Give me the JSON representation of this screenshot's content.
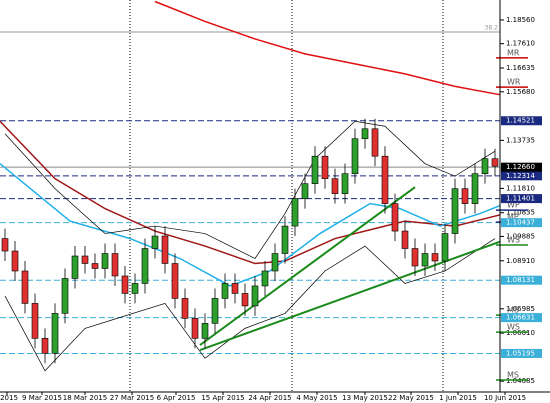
{
  "chart_data": {
    "type": "candlestick",
    "ylim": [
      1.0365,
      1.1936
    ],
    "yticks": [
      {
        "value": 1.1856,
        "label": "1.18560"
      },
      {
        "value": 1.1761,
        "label": "1.17610"
      },
      {
        "value": 1.16635,
        "label": "1.16635"
      },
      {
        "value": 1.1568,
        "label": "1.15680"
      },
      {
        "value": 1.13735,
        "label": "1.13735"
      },
      {
        "value": 1.1181,
        "label": "1.11810"
      },
      {
        "value": 1.10835,
        "label": "1.10835"
      },
      {
        "value": 1.09885,
        "label": "1.09885"
      },
      {
        "value": 1.0891,
        "label": "1.08910"
      },
      {
        "value": 1.06985,
        "label": "1.06985"
      },
      {
        "value": 1.0601,
        "label": "1.06010"
      },
      {
        "value": 1.04085,
        "label": "1.04085"
      }
    ],
    "xticks": [
      {
        "value": 0.2,
        "label": "2015"
      },
      {
        "value": 3.7,
        "label": "9 Mar 2015"
      },
      {
        "value": 8,
        "label": "18 Mar 2015"
      },
      {
        "value": 12.7,
        "label": "27 Mar 2015"
      },
      {
        "value": 17.1,
        "label": "6 Apr 2015"
      },
      {
        "value": 21.8,
        "label": "15 Apr 2015"
      },
      {
        "value": 26.5,
        "label": "24 Apr 2015"
      },
      {
        "value": 31.2,
        "label": "4 May 2015"
      },
      {
        "value": 36,
        "label": "13 May 2015"
      },
      {
        "value": 40.6,
        "label": "22 May 2015"
      },
      {
        "value": 45.3,
        "label": "1 Jun 2015"
      },
      {
        "value": 50,
        "label": "10 Jun 2015"
      }
    ],
    "separators": [
      12.5,
      28.7,
      43.8
    ],
    "up_color": "#2ca02c",
    "down_color": "#e03030",
    "open": [
      1.098,
      1.093,
      1.085,
      1.072,
      1.058,
      1.052,
      1.068,
      1.082,
      1.091,
      1.088,
      1.086,
      1.092,
      1.083,
      1.076,
      1.08,
      1.094,
      1.099,
      1.088,
      1.074,
      1.066,
      1.058,
      1.064,
      1.074,
      1.08,
      1.076,
      1.071,
      1.079,
      1.085,
      1.092,
      1.103,
      1.114,
      1.12,
      1.131,
      1.122,
      1.116,
      1.124,
      1.138,
      1.142,
      1.131,
      1.112,
      1.101,
      1.094,
      1.087,
      1.092,
      1.089,
      1.1,
      1.118,
      1.112,
      1.124,
      1.13
    ],
    "high": [
      1.102,
      1.097,
      1.089,
      1.076,
      1.062,
      1.072,
      1.086,
      1.095,
      1.095,
      1.092,
      1.096,
      1.096,
      1.087,
      1.084,
      1.098,
      1.103,
      1.103,
      1.092,
      1.078,
      1.07,
      1.068,
      1.078,
      1.084,
      1.084,
      1.08,
      1.083,
      1.089,
      1.096,
      1.107,
      1.118,
      1.124,
      1.135,
      1.135,
      1.126,
      1.128,
      1.142,
      1.146,
      1.146,
      1.135,
      1.116,
      1.105,
      1.098,
      1.096,
      1.096,
      1.104,
      1.122,
      1.122,
      1.128,
      1.134,
      1.134
    ],
    "low": [
      1.089,
      1.081,
      1.068,
      1.054,
      1.048,
      1.048,
      1.064,
      1.078,
      1.084,
      1.082,
      1.082,
      1.079,
      1.072,
      1.072,
      1.076,
      1.09,
      1.084,
      1.07,
      1.062,
      1.054,
      1.054,
      1.06,
      1.07,
      1.072,
      1.067,
      1.067,
      1.075,
      1.081,
      1.088,
      1.099,
      1.11,
      1.116,
      1.118,
      1.112,
      1.112,
      1.12,
      1.134,
      1.127,
      1.108,
      1.097,
      1.09,
      1.083,
      1.083,
      1.085,
      1.085,
      1.096,
      1.108,
      1.108,
      1.12,
      1.123
    ],
    "close": [
      1.093,
      1.085,
      1.072,
      1.058,
      1.052,
      1.068,
      1.082,
      1.091,
      1.088,
      1.086,
      1.092,
      1.083,
      1.076,
      1.08,
      1.094,
      1.099,
      1.088,
      1.074,
      1.066,
      1.058,
      1.064,
      1.074,
      1.08,
      1.076,
      1.071,
      1.079,
      1.085,
      1.092,
      1.103,
      1.114,
      1.12,
      1.131,
      1.122,
      1.116,
      1.124,
      1.138,
      1.142,
      1.131,
      1.112,
      1.101,
      1.094,
      1.087,
      1.092,
      1.089,
      1.1,
      1.118,
      1.112,
      1.124,
      1.13,
      1.127
    ],
    "lines": [
      {
        "color": "#e01010",
        "width": 1.5,
        "x": [
          15,
          20,
          25,
          30,
          35,
          40,
          45,
          49,
          53
        ],
        "values": [
          1.193,
          1.185,
          1.178,
          1.172,
          1.168,
          1.164,
          1.159,
          1.156,
          1.1535
        ]
      },
      {
        "color": "#a01818",
        "width": 1.5,
        "x": [
          -0.5,
          5,
          10,
          15,
          20,
          25,
          28,
          33,
          40,
          45,
          50
        ],
        "values": [
          1.145,
          1.122,
          1.11,
          1.101,
          1.095,
          1.088,
          1.089,
          1.098,
          1.105,
          1.103,
          1.108
        ]
      },
      {
        "color": "#1fb0e8",
        "width": 1.5,
        "x": [
          -0.5,
          6.5,
          12.5,
          17.5,
          22.5,
          26.5,
          31.5,
          36.5,
          39.5,
          43.5,
          47.5,
          50
        ],
        "values": [
          1.128,
          1.105,
          1.098,
          1.09,
          1.079,
          1.085,
          1.1,
          1.112,
          1.11,
          1.103,
          1.108,
          1.112
        ]
      },
      {
        "color": "#000000",
        "width": 0.7,
        "x": [
          0,
          5,
          10,
          15,
          20,
          25,
          28,
          31,
          35,
          38,
          42,
          45,
          49
        ],
        "values": [
          1.14,
          1.118,
          1.1,
          1.103,
          1.1,
          1.09,
          1.108,
          1.13,
          1.145,
          1.143,
          1.128,
          1.123,
          1.133
        ]
      },
      {
        "color": "#000000",
        "width": 0.7,
        "x": [
          0,
          4,
          8,
          12,
          16,
          20,
          24,
          28,
          32,
          36,
          40,
          44,
          49
        ],
        "values": [
          1.075,
          1.045,
          1.062,
          1.067,
          1.072,
          1.05,
          1.062,
          1.068,
          1.085,
          1.095,
          1.08,
          1.085,
          1.098
        ]
      }
    ],
    "trendlines": [
      {
        "color": "#1a8a1a",
        "x": [
          19.5,
          41
        ],
        "values": [
          1.0553,
          1.1186
        ]
      },
      {
        "color": "#1a8a1a",
        "x": [
          19.5,
          50.5
        ],
        "values": [
          1.0533,
          1.0982
        ]
      }
    ],
    "levels": [
      {
        "value": 1.14521,
        "color": "#1a2a80",
        "text": "#ffffff"
      },
      {
        "value": 1.12314,
        "color": "#1a2a80",
        "text": "#ffffff"
      },
      {
        "value": 1.11401,
        "color": "#1a2a80",
        "text": "#ffffff"
      },
      {
        "value": 1.10437,
        "color": "#3ab0d8",
        "text": "#ffffff"
      },
      {
        "value": 1.08131,
        "color": "#3ab0d8",
        "text": "#ffffff"
      },
      {
        "value": 1.06631,
        "color": "#3ab0d8",
        "text": "#ffffff"
      },
      {
        "value": 1.05195,
        "color": "#3ab0d8",
        "text": "#ffffff"
      }
    ],
    "current": {
      "value": 1.1266,
      "label": "1.12660"
    },
    "fib": {
      "value": 1.1808,
      "label": "38.2"
    },
    "pivots": [
      {
        "label": "MR",
        "value": 1.1704,
        "color": "#d00000"
      },
      {
        "label": "WR",
        "value": 1.1587,
        "color": "#d00000"
      },
      {
        "label": "WP",
        "value": 1.1094,
        "color": "#1a2a80"
      },
      {
        "label": "MP",
        "value": 1.1046,
        "color": "#1a2a80"
      },
      {
        "label": "WS",
        "value": 1.0954,
        "color": "#1a8a1a"
      },
      {
        "label": "MS",
        "value": 1.0673,
        "color": "#1a8a1a"
      },
      {
        "label": "WS",
        "value": 1.0605,
        "color": "#1a8a1a"
      },
      {
        "label": "MS",
        "value": 1.0413,
        "color": "#1a8a1a"
      }
    ]
  }
}
